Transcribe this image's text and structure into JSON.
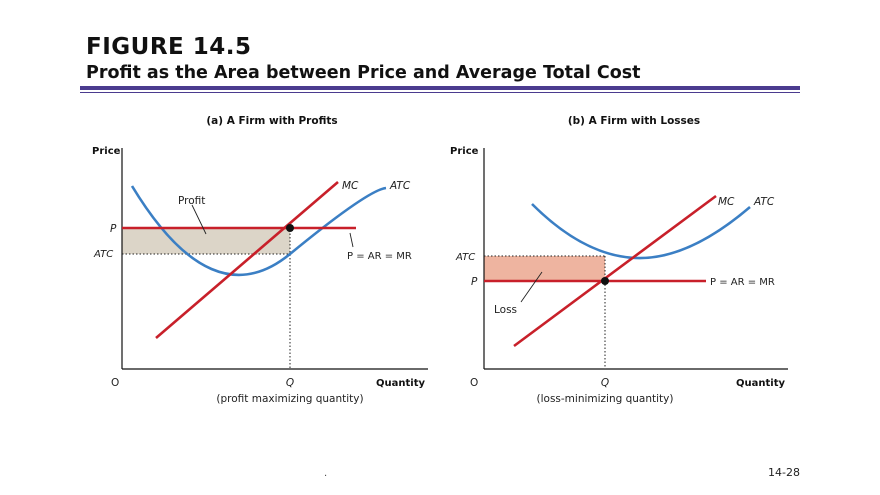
{
  "header": {
    "title": "FIGURE 14.5",
    "subtitle": "Profit as the Area between Price and Average Total Cost"
  },
  "panel_a": {
    "title": "(a) A Firm with Profits",
    "y_axis_label": "Price",
    "x_axis_label": "Quantity",
    "origin_label": "O",
    "p_label": "P",
    "atc_tick_label": "ATC",
    "q_label": "Q",
    "q_caption": "(profit maximizing quantity)",
    "mc_label": "MC",
    "atc_curve_label": "ATC",
    "demand_label": "P = AR = MR",
    "area_label": "Profit"
  },
  "panel_b": {
    "title": "(b) A Firm with Losses",
    "y_axis_label": "Price",
    "x_axis_label": "Quantity",
    "origin_label": "O",
    "p_label": "P",
    "atc_tick_label": "ATC",
    "q_label": "Q",
    "q_caption": "(loss-minimizing quantity)",
    "mc_label": "MC",
    "atc_curve_label": "ATC",
    "demand_label": "P = AR = MR",
    "area_label": "Loss"
  },
  "colors": {
    "mc_line": "#c8202a",
    "price_line": "#c8202a",
    "atc_curve": "#3b7fc4",
    "profit_fill": "#dcd5c8",
    "loss_fill": "#eeb4a0",
    "header_rule": "#4b3b8f"
  },
  "footer": {
    "dot": ".",
    "page_number": "14-28"
  }
}
